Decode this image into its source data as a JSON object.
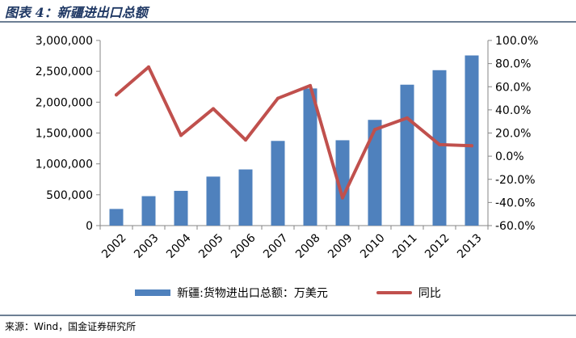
{
  "figure": {
    "title": "图表 4：新疆进出口总额",
    "source": "来源：Wind，国金证券研究所"
  },
  "chart_data": {
    "type": "bar",
    "title": "",
    "xlabel": "",
    "ylabel": "",
    "categories": [
      "2002",
      "2003",
      "2004",
      "2005",
      "2006",
      "2007",
      "2008",
      "2009",
      "2010",
      "2011",
      "2012",
      "2013"
    ],
    "series": [
      {
        "name": "新疆:货物进出口总额：万美元",
        "type": "bar",
        "axis": "left",
        "color": "#4f81bd",
        "values": [
          270000,
          477000,
          563000,
          794000,
          910000,
          1372000,
          2222000,
          1383000,
          1713000,
          2283000,
          2518000,
          2757000
        ]
      },
      {
        "name": "同比",
        "type": "line",
        "axis": "right",
        "color": "#c0504d",
        "values": [
          53,
          77,
          18,
          41,
          14,
          50,
          61,
          -36,
          23,
          33,
          10,
          9
        ]
      }
    ],
    "y_left": {
      "ylim": [
        0,
        3000000
      ],
      "ticks": [
        0,
        500000,
        1000000,
        1500000,
        2000000,
        2500000,
        3000000
      ],
      "tick_labels": [
        "0",
        "500,000",
        "1,000,000",
        "1,500,000",
        "2,000,000",
        "2,500,000",
        "3,000,000"
      ]
    },
    "y_right": {
      "ylim": [
        -60,
        100
      ],
      "ticks": [
        -60,
        -40,
        -20,
        0,
        20,
        40,
        60,
        80,
        100
      ],
      "tick_labels": [
        "-60.0%",
        "-40.0%",
        "-20.0%",
        "0.0%",
        "20.0%",
        "40.0%",
        "60.0%",
        "80.0%",
        "100.0%"
      ]
    },
    "grid": false,
    "legend_position": "bottom"
  }
}
